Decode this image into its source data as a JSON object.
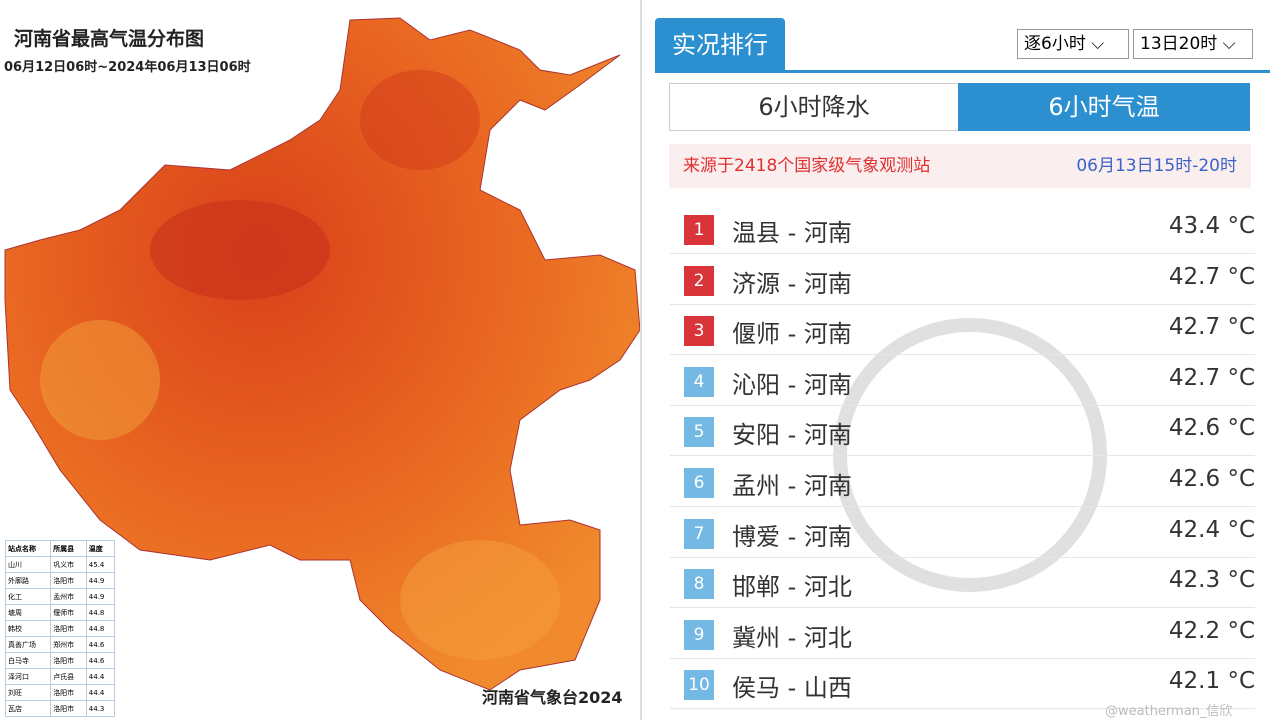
{
  "map": {
    "title": "河南省最高气温分布图",
    "subtitle": "06月12日06时~2024年06月13日06时",
    "footer": "河南省气象台2024",
    "table": {
      "header": [
        "站点名称",
        "所属县",
        "温度"
      ],
      "rows": [
        [
          "山川",
          "巩义市",
          "45.4"
        ],
        [
          "外廓路",
          "洛阳市",
          "44.9"
        ],
        [
          "化工",
          "孟州市",
          "44.9"
        ],
        [
          "塘周",
          "偃师市",
          "44.8"
        ],
        [
          "韩校",
          "洛阳市",
          "44.8"
        ],
        [
          "真善广场",
          "郑州市",
          "44.6"
        ],
        [
          "白马寺",
          "洛阳市",
          "44.6"
        ],
        [
          "泽河口",
          "卢氏县",
          "44.4"
        ],
        [
          "刘旺",
          "洛阳市",
          "44.4"
        ],
        [
          "瓦店",
          "洛阳市",
          "44.3"
        ]
      ]
    }
  },
  "panel": {
    "tab": "实况排行",
    "selects": [
      "逐6小时",
      "13日20时"
    ],
    "toggles": [
      "6小时降水",
      "6小时气温"
    ],
    "source": "来源于2418个国家级气象观测站",
    "period": "06月13日15时-20时",
    "unit": "°C",
    "rows": [
      {
        "rank": "1",
        "name": "温县 - 河南",
        "value": "43.4"
      },
      {
        "rank": "2",
        "name": "济源 - 河南",
        "value": "42.7"
      },
      {
        "rank": "3",
        "name": "偃师 - 河南",
        "value": "42.7"
      },
      {
        "rank": "4",
        "name": "沁阳 - 河南",
        "value": "42.7"
      },
      {
        "rank": "5",
        "name": "安阳 - 河南",
        "value": "42.6"
      },
      {
        "rank": "6",
        "name": "孟州 - 河南",
        "value": "42.6"
      },
      {
        "rank": "7",
        "name": "博爱 - 河南",
        "value": "42.4"
      },
      {
        "rank": "8",
        "name": "邯郸 - 河北",
        "value": "42.3"
      },
      {
        "rank": "9",
        "name": "冀州 - 河北",
        "value": "42.2"
      },
      {
        "rank": "10",
        "name": "侯马 - 山西",
        "value": "42.1"
      }
    ],
    "watermark": "@weatherman_信欣"
  }
}
